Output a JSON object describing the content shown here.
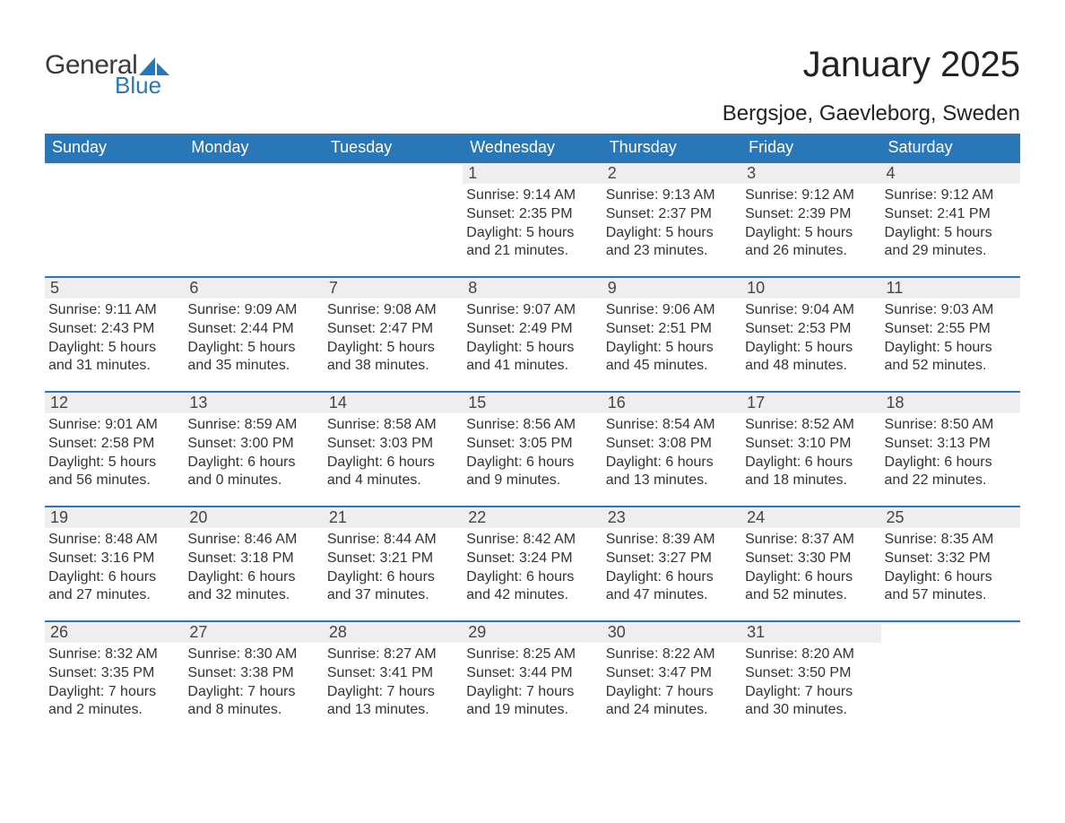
{
  "logo": {
    "general": "General",
    "blue": "Blue",
    "sail_color": "#2a77b8"
  },
  "header": {
    "title": "January 2025",
    "location": "Bergsjoe, Gaevleborg, Sweden"
  },
  "style": {
    "accent": "#2a77b8",
    "header_bg": "#2a77b8",
    "header_text": "#ffffff",
    "daynum_bg": "#eeeeee",
    "body_text": "#333333"
  },
  "weekdays": [
    "Sunday",
    "Monday",
    "Tuesday",
    "Wednesday",
    "Thursday",
    "Friday",
    "Saturday"
  ],
  "days": {
    "1": {
      "sunrise": "Sunrise: 9:14 AM",
      "sunset": "Sunset: 2:35 PM",
      "d1": "Daylight: 5 hours",
      "d2": "and 21 minutes."
    },
    "2": {
      "sunrise": "Sunrise: 9:13 AM",
      "sunset": "Sunset: 2:37 PM",
      "d1": "Daylight: 5 hours",
      "d2": "and 23 minutes."
    },
    "3": {
      "sunrise": "Sunrise: 9:12 AM",
      "sunset": "Sunset: 2:39 PM",
      "d1": "Daylight: 5 hours",
      "d2": "and 26 minutes."
    },
    "4": {
      "sunrise": "Sunrise: 9:12 AM",
      "sunset": "Sunset: 2:41 PM",
      "d1": "Daylight: 5 hours",
      "d2": "and 29 minutes."
    },
    "5": {
      "sunrise": "Sunrise: 9:11 AM",
      "sunset": "Sunset: 2:43 PM",
      "d1": "Daylight: 5 hours",
      "d2": "and 31 minutes."
    },
    "6": {
      "sunrise": "Sunrise: 9:09 AM",
      "sunset": "Sunset: 2:44 PM",
      "d1": "Daylight: 5 hours",
      "d2": "and 35 minutes."
    },
    "7": {
      "sunrise": "Sunrise: 9:08 AM",
      "sunset": "Sunset: 2:47 PM",
      "d1": "Daylight: 5 hours",
      "d2": "and 38 minutes."
    },
    "8": {
      "sunrise": "Sunrise: 9:07 AM",
      "sunset": "Sunset: 2:49 PM",
      "d1": "Daylight: 5 hours",
      "d2": "and 41 minutes."
    },
    "9": {
      "sunrise": "Sunrise: 9:06 AM",
      "sunset": "Sunset: 2:51 PM",
      "d1": "Daylight: 5 hours",
      "d2": "and 45 minutes."
    },
    "10": {
      "sunrise": "Sunrise: 9:04 AM",
      "sunset": "Sunset: 2:53 PM",
      "d1": "Daylight: 5 hours",
      "d2": "and 48 minutes."
    },
    "11": {
      "sunrise": "Sunrise: 9:03 AM",
      "sunset": "Sunset: 2:55 PM",
      "d1": "Daylight: 5 hours",
      "d2": "and 52 minutes."
    },
    "12": {
      "sunrise": "Sunrise: 9:01 AM",
      "sunset": "Sunset: 2:58 PM",
      "d1": "Daylight: 5 hours",
      "d2": "and 56 minutes."
    },
    "13": {
      "sunrise": "Sunrise: 8:59 AM",
      "sunset": "Sunset: 3:00 PM",
      "d1": "Daylight: 6 hours",
      "d2": "and 0 minutes."
    },
    "14": {
      "sunrise": "Sunrise: 8:58 AM",
      "sunset": "Sunset: 3:03 PM",
      "d1": "Daylight: 6 hours",
      "d2": "and 4 minutes."
    },
    "15": {
      "sunrise": "Sunrise: 8:56 AM",
      "sunset": "Sunset: 3:05 PM",
      "d1": "Daylight: 6 hours",
      "d2": "and 9 minutes."
    },
    "16": {
      "sunrise": "Sunrise: 8:54 AM",
      "sunset": "Sunset: 3:08 PM",
      "d1": "Daylight: 6 hours",
      "d2": "and 13 minutes."
    },
    "17": {
      "sunrise": "Sunrise: 8:52 AM",
      "sunset": "Sunset: 3:10 PM",
      "d1": "Daylight: 6 hours",
      "d2": "and 18 minutes."
    },
    "18": {
      "sunrise": "Sunrise: 8:50 AM",
      "sunset": "Sunset: 3:13 PM",
      "d1": "Daylight: 6 hours",
      "d2": "and 22 minutes."
    },
    "19": {
      "sunrise": "Sunrise: 8:48 AM",
      "sunset": "Sunset: 3:16 PM",
      "d1": "Daylight: 6 hours",
      "d2": "and 27 minutes."
    },
    "20": {
      "sunrise": "Sunrise: 8:46 AM",
      "sunset": "Sunset: 3:18 PM",
      "d1": "Daylight: 6 hours",
      "d2": "and 32 minutes."
    },
    "21": {
      "sunrise": "Sunrise: 8:44 AM",
      "sunset": "Sunset: 3:21 PM",
      "d1": "Daylight: 6 hours",
      "d2": "and 37 minutes."
    },
    "22": {
      "sunrise": "Sunrise: 8:42 AM",
      "sunset": "Sunset: 3:24 PM",
      "d1": "Daylight: 6 hours",
      "d2": "and 42 minutes."
    },
    "23": {
      "sunrise": "Sunrise: 8:39 AM",
      "sunset": "Sunset: 3:27 PM",
      "d1": "Daylight: 6 hours",
      "d2": "and 47 minutes."
    },
    "24": {
      "sunrise": "Sunrise: 8:37 AM",
      "sunset": "Sunset: 3:30 PM",
      "d1": "Daylight: 6 hours",
      "d2": "and 52 minutes."
    },
    "25": {
      "sunrise": "Sunrise: 8:35 AM",
      "sunset": "Sunset: 3:32 PM",
      "d1": "Daylight: 6 hours",
      "d2": "and 57 minutes."
    },
    "26": {
      "sunrise": "Sunrise: 8:32 AM",
      "sunset": "Sunset: 3:35 PM",
      "d1": "Daylight: 7 hours",
      "d2": "and 2 minutes."
    },
    "27": {
      "sunrise": "Sunrise: 8:30 AM",
      "sunset": "Sunset: 3:38 PM",
      "d1": "Daylight: 7 hours",
      "d2": "and 8 minutes."
    },
    "28": {
      "sunrise": "Sunrise: 8:27 AM",
      "sunset": "Sunset: 3:41 PM",
      "d1": "Daylight: 7 hours",
      "d2": "and 13 minutes."
    },
    "29": {
      "sunrise": "Sunrise: 8:25 AM",
      "sunset": "Sunset: 3:44 PM",
      "d1": "Daylight: 7 hours",
      "d2": "and 19 minutes."
    },
    "30": {
      "sunrise": "Sunrise: 8:22 AM",
      "sunset": "Sunset: 3:47 PM",
      "d1": "Daylight: 7 hours",
      "d2": "and 24 minutes."
    },
    "31": {
      "sunrise": "Sunrise: 8:20 AM",
      "sunset": "Sunset: 3:50 PM",
      "d1": "Daylight: 7 hours",
      "d2": "and 30 minutes."
    }
  },
  "grid": [
    [
      null,
      null,
      null,
      1,
      2,
      3,
      4
    ],
    [
      5,
      6,
      7,
      8,
      9,
      10,
      11
    ],
    [
      12,
      13,
      14,
      15,
      16,
      17,
      18
    ],
    [
      19,
      20,
      21,
      22,
      23,
      24,
      25
    ],
    [
      26,
      27,
      28,
      29,
      30,
      31,
      null
    ]
  ]
}
